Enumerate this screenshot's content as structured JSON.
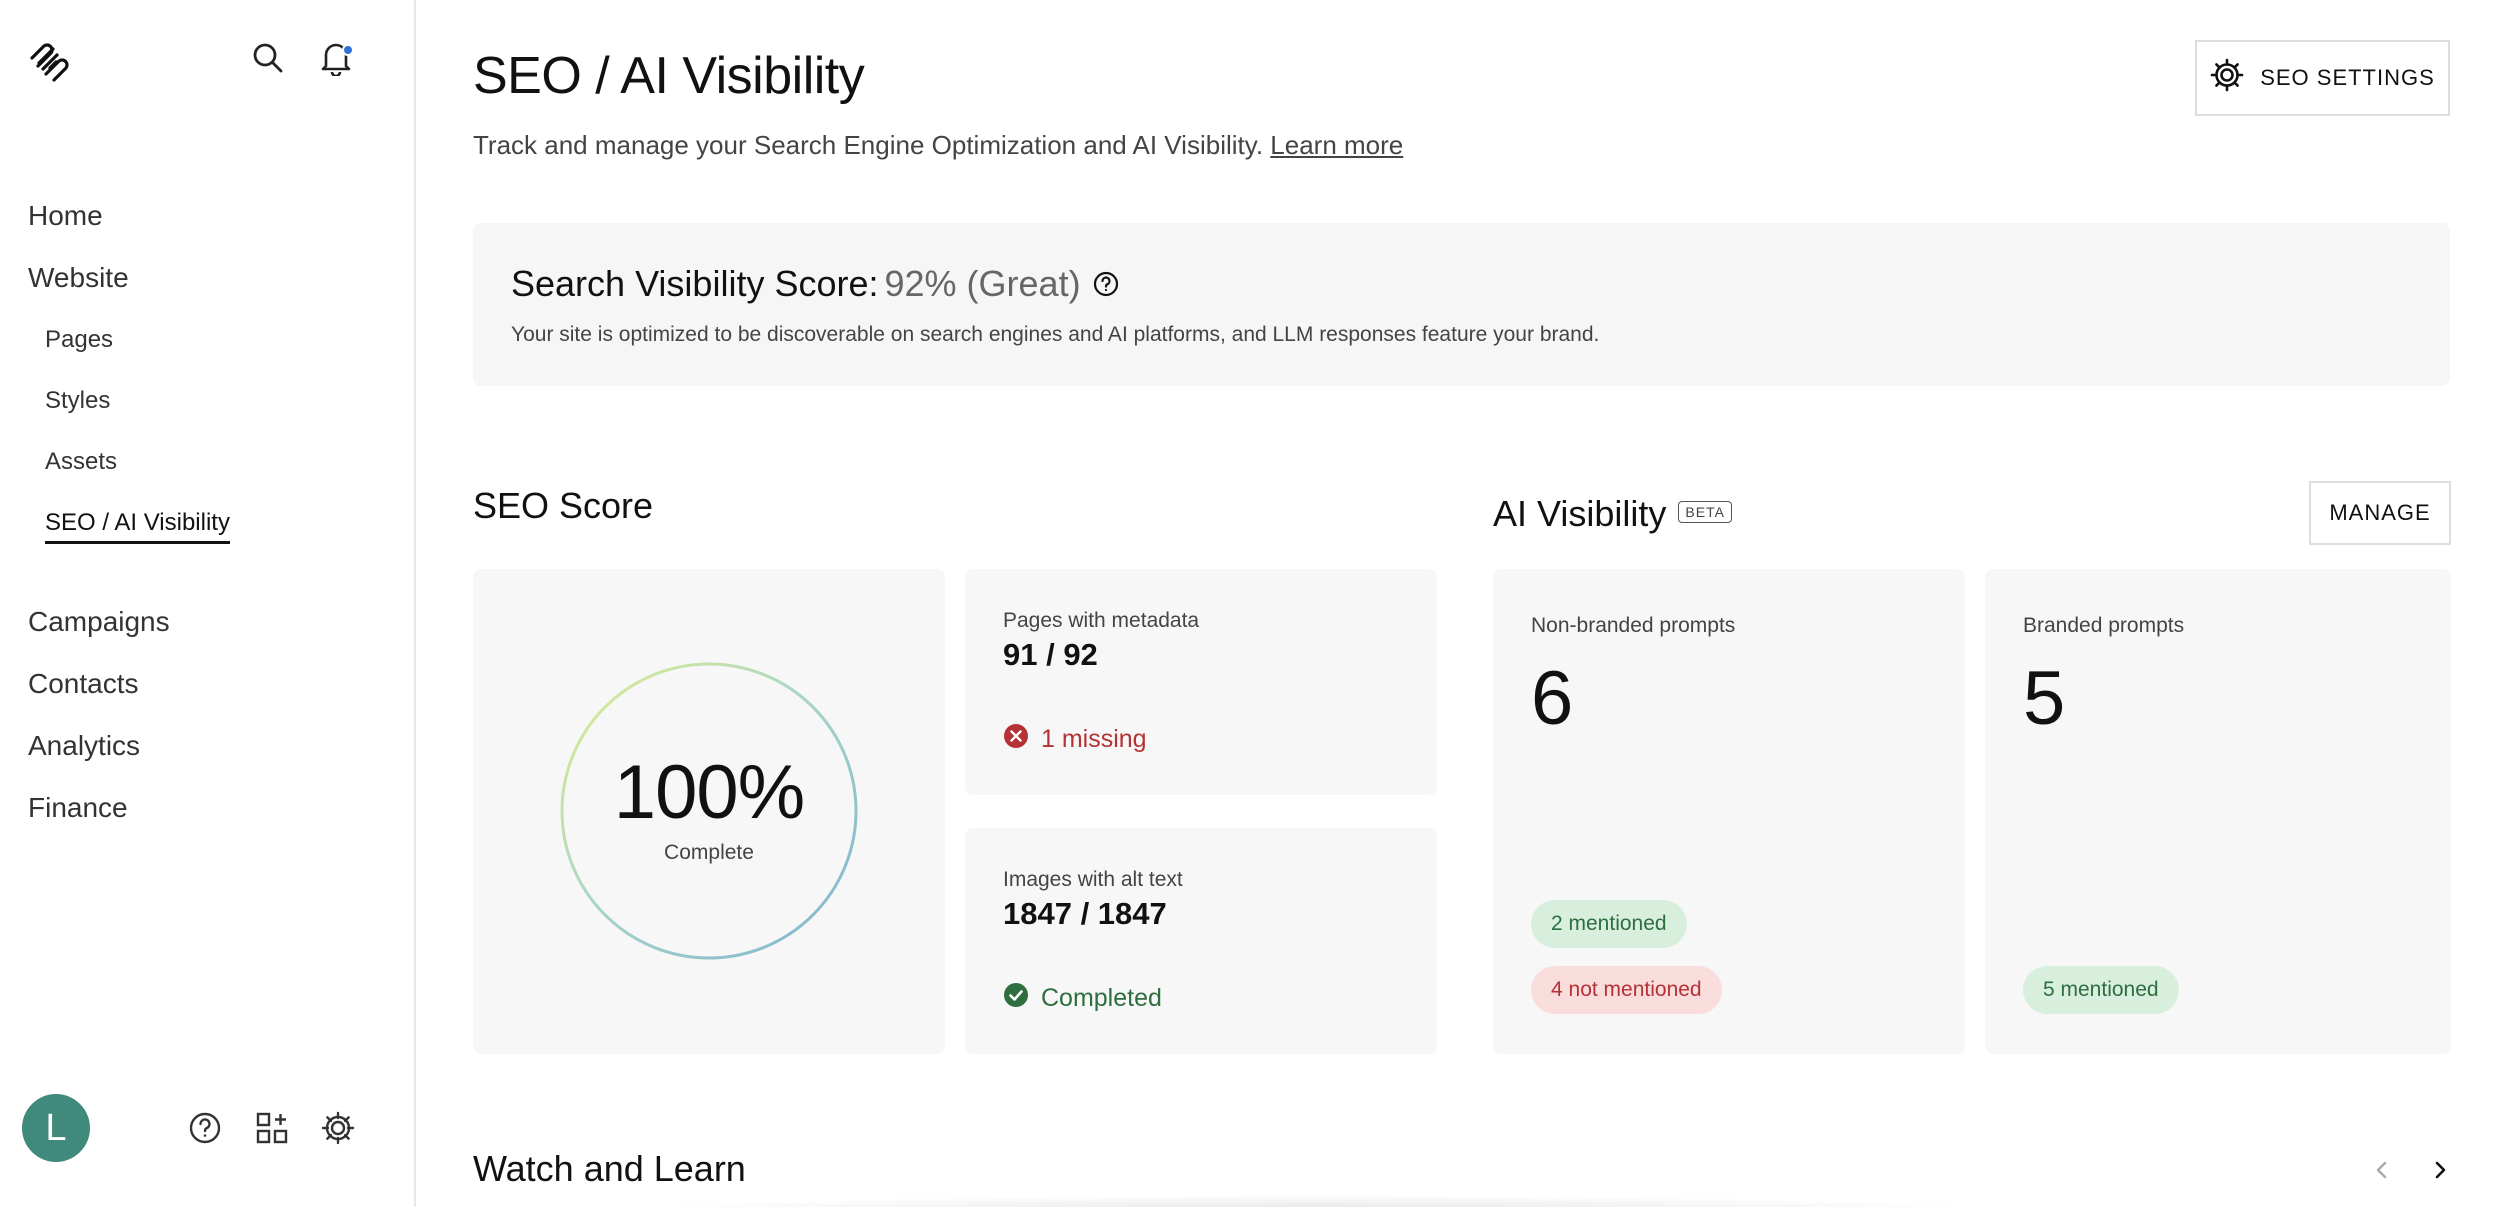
{
  "sidebar": {
    "nav": [
      {
        "label": "Home",
        "name": "home"
      },
      {
        "label": "Website",
        "name": "website"
      },
      {
        "label": "Campaigns",
        "name": "campaigns"
      },
      {
        "label": "Contacts",
        "name": "contacts"
      },
      {
        "label": "Analytics",
        "name": "analytics"
      },
      {
        "label": "Finance",
        "name": "finance"
      }
    ],
    "website_sub": [
      {
        "label": "Pages",
        "name": "pages"
      },
      {
        "label": "Styles",
        "name": "styles"
      },
      {
        "label": "Assets",
        "name": "assets"
      },
      {
        "label": "SEO / AI Visibility",
        "name": "seo-ai-visibility",
        "active": true
      }
    ],
    "avatar_initial": "L",
    "icons": [
      "search-icon",
      "bell-icon",
      "help-icon",
      "apps-icon",
      "gear-icon"
    ],
    "notification_dot_color": "#2f6fd6",
    "avatar_color": "#3f8a7a"
  },
  "header": {
    "title": "SEO / AI Visibility",
    "subtitle": "Track and manage your Search Engine Optimization and AI Visibility.",
    "learn_more": "Learn more",
    "settings_button": "SEO SETTINGS"
  },
  "visibility_score": {
    "label": "Search Visibility Score:",
    "value": "92% (Great)",
    "description": "Your site is optimized to be discoverable on search engines and AI platforms, and LLM responses feature your brand."
  },
  "seo_score": {
    "title": "SEO Score",
    "percent": "100%",
    "percent_value": 1.0,
    "status": "Complete",
    "metadata": {
      "label": "Pages with metadata",
      "value": "91 / 92",
      "status": "1 missing"
    },
    "alt_text": {
      "label": "Images with alt text",
      "value": "1847 / 1847",
      "status": "Completed"
    }
  },
  "ai_visibility": {
    "title": "AI Visibility",
    "badge": "BETA",
    "manage_button": "MANAGE",
    "non_branded": {
      "label": "Non-branded prompts",
      "count": "6",
      "mentioned": "2 mentioned",
      "not_mentioned": "4 not mentioned"
    },
    "branded": {
      "label": "Branded prompts",
      "count": "5",
      "mentioned": "5 mentioned"
    }
  },
  "watch_and_learn": {
    "title": "Watch and Learn"
  },
  "colors": {
    "error": "#b53234",
    "success": "#2e6e3f"
  }
}
